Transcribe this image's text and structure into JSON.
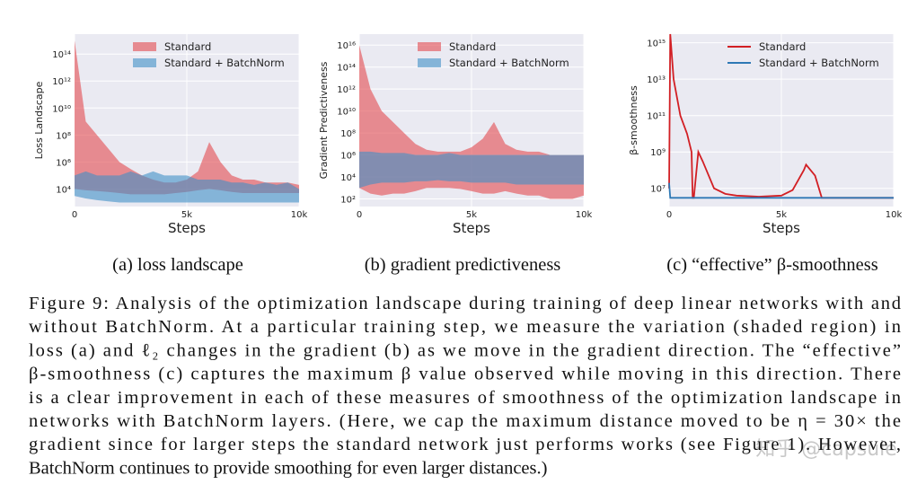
{
  "chart_data": [
    {
      "type": "band",
      "caption": "(a) loss landscape",
      "xlabel": "Steps",
      "ylabel": "Loss Landscape",
      "log_y": true,
      "grid": true,
      "legend": "upper right",
      "x": [
        0,
        500,
        1000,
        1500,
        2000,
        2500,
        3000,
        3500,
        4000,
        4500,
        5000,
        5500,
        6000,
        6500,
        7000,
        7500,
        8000,
        8500,
        9000,
        9500,
        10000
      ],
      "xlim": [
        0,
        10000
      ],
      "xticks": [
        0,
        {
          "value": 5000,
          "label": "5k"
        },
        {
          "value": 10000,
          "label": "10k"
        }
      ],
      "ylim": [
        500,
        3000000000000000.0
      ],
      "yticks": [
        {
          "value": 10000.0,
          "label": "10⁴"
        },
        {
          "value": 1000000.0,
          "label": "10⁶"
        },
        {
          "value": 100000000.0,
          "label": "10⁸"
        },
        {
          "value": 10000000000.0,
          "label": "10¹⁰"
        },
        {
          "value": 1000000000000.0,
          "label": "10¹²"
        },
        {
          "value": 100000000000000.0,
          "label": "10¹⁴"
        }
      ],
      "series": [
        {
          "name": "Standard",
          "color": "#e24a4f",
          "values": [
            1000000000000000.0,
            1000000000.0,
            100000000.0,
            10000000.0,
            1000000.0,
            300000.0,
            100000.0,
            50000.0,
            30000.0,
            30000.0,
            50000.0,
            200000.0,
            30000000.0,
            1000000.0,
            100000.0,
            50000.0,
            50000.0,
            30000.0,
            30000.0,
            30000.0,
            20000.0
          ],
          "lower": [
            10000.0,
            8000.0,
            7000.0,
            6000.0,
            5000.0,
            4000.0,
            4000.0,
            4000.0,
            4000.0,
            5000.0,
            6000.0,
            8000.0,
            10000.0,
            8000.0,
            6000.0,
            5000.0,
            5000.0,
            5000.0,
            5000.0,
            5000.0,
            5000.0
          ]
        },
        {
          "name": "Standard + BatchNorm",
          "color": "#3f8fc7",
          "values": [
            100000.0,
            200000.0,
            100000.0,
            100000.0,
            100000.0,
            200000.0,
            100000.0,
            200000.0,
            100000.0,
            100000.0,
            100000.0,
            50000.0,
            50000.0,
            50000.0,
            30000.0,
            30000.0,
            20000.0,
            30000.0,
            20000.0,
            30000.0,
            10000.0
          ],
          "lower": [
            3000.0,
            2000.0,
            1500.0,
            1200.0,
            1000.0,
            1000.0,
            1000.0,
            1000.0,
            1000.0,
            1000.0,
            1000.0,
            1000.0,
            1000.0,
            1000.0,
            1000.0,
            1000.0,
            1000.0,
            1000.0,
            1000.0,
            1000.0,
            1000.0
          ]
        }
      ]
    },
    {
      "type": "band",
      "caption": "(b) gradient predictiveness",
      "xlabel": "Steps",
      "ylabel": "Gradient Predictiveness",
      "log_y": true,
      "grid": true,
      "legend": "upper right",
      "x": [
        0,
        500,
        1000,
        1500,
        2000,
        2500,
        3000,
        3500,
        4000,
        4500,
        5000,
        5500,
        6000,
        6500,
        7000,
        7500,
        8000,
        8500,
        9000,
        9500,
        10000
      ],
      "xlim": [
        0,
        10000
      ],
      "xticks": [
        0,
        {
          "value": 5000,
          "label": "5k"
        },
        {
          "value": 10000,
          "label": "10k"
        }
      ],
      "ylim": [
        20,
        1e+17
      ],
      "yticks": [
        {
          "value": 100,
          "label": "10²"
        },
        {
          "value": 10000.0,
          "label": "10⁴"
        },
        {
          "value": 1000000.0,
          "label": "10⁶"
        },
        {
          "value": 100000000.0,
          "label": "10⁸"
        },
        {
          "value": 10000000000.0,
          "label": "10¹⁰"
        },
        {
          "value": 1000000000000.0,
          "label": "10¹²"
        },
        {
          "value": 100000000000000.0,
          "label": "10¹⁴"
        },
        {
          "value": 1e+16,
          "label": "10¹⁶"
        }
      ],
      "series": [
        {
          "name": "Standard",
          "color": "#e24a4f",
          "values": [
            1e+16,
            1000000000000.0,
            10000000000.0,
            1000000000.0,
            100000000.0,
            10000000.0,
            3000000.0,
            2000000.0,
            2000000.0,
            2000000.0,
            5000000.0,
            30000000.0,
            1000000000.0,
            10000000.0,
            3000000.0,
            2000000.0,
            2000000.0,
            1000000.0,
            1000000.0,
            1000000.0,
            1000000.0
          ],
          "lower": [
            1000.0,
            300,
            200,
            300,
            300,
            500,
            1000.0,
            1000.0,
            1000.0,
            800,
            500,
            300,
            300,
            500,
            300,
            200,
            200,
            100,
            100,
            100,
            200
          ]
        },
        {
          "name": "Standard + BatchNorm",
          "color": "#3f8fc7",
          "values": [
            2000000.0,
            2000000.0,
            1500000.0,
            1500000.0,
            1500000.0,
            1000000.0,
            1000000.0,
            1000000.0,
            1500000.0,
            1000000.0,
            1000000.0,
            1000000.0,
            1000000.0,
            1000000.0,
            1000000.0,
            1000000.0,
            1000000.0,
            1000000.0,
            1000000.0,
            1000000.0,
            1000000.0
          ],
          "lower": [
            1000.0,
            2000.0,
            3000.0,
            3000.0,
            3000.0,
            4000.0,
            4000.0,
            5000.0,
            4000.0,
            4000.0,
            3000.0,
            3000.0,
            3000.0,
            3000.0,
            2000.0,
            2000.0,
            2000.0,
            2000.0,
            2000.0,
            2000.0,
            2000.0
          ]
        }
      ]
    },
    {
      "type": "line",
      "caption": "(c) “effective” β-smoothness",
      "xlabel": "Steps",
      "ylabel": "β-smoothness",
      "log_y": true,
      "grid": true,
      "legend": "upper right",
      "x": [
        0,
        50,
        200,
        500,
        800,
        1000,
        1050,
        1100,
        1300,
        1500,
        2000,
        2500,
        3000,
        4000,
        5000,
        5500,
        6000,
        6100,
        6500,
        6800,
        7000,
        8000,
        10000
      ],
      "xlim": [
        0,
        10000
      ],
      "xticks": [
        0,
        {
          "value": 5000,
          "label": "5k"
        },
        {
          "value": 10000,
          "label": "10k"
        }
      ],
      "ylim": [
        1000000.0,
        3000000000000000.0
      ],
      "yticks": [
        {
          "value": 10000000.0,
          "label": "10⁷"
        },
        {
          "value": 1000000000.0,
          "label": "10⁹"
        },
        {
          "value": 100000000000.0,
          "label": "10¹¹"
        },
        {
          "value": 10000000000000.0,
          "label": "10¹³"
        },
        {
          "value": 1000000000000000.0,
          "label": "10¹⁵"
        }
      ],
      "series": [
        {
          "name": "Standard",
          "color": "#d21f24",
          "values": [
            10000000.0,
            3000000000000000.0,
            10000000000000.0,
            100000000000.0,
            10000000000.0,
            1000000000.0,
            3000000.0,
            3000000.0,
            1000000000.0,
            300000000.0,
            10000000.0,
            5000000.0,
            4000000.0,
            3500000.0,
            4000000.0,
            8000000.0,
            100000000.0,
            200000000.0,
            50000000.0,
            3000000.0,
            3000000.0,
            3000000.0,
            3000000.0
          ]
        },
        {
          "name": "Standard + BatchNorm",
          "color": "#2e78b5",
          "values": [
            20000000.0,
            3000000.0,
            3000000.0,
            3000000.0,
            3000000.0,
            3000000.0,
            3000000.0,
            3000000.0,
            3000000.0,
            3000000.0,
            3000000.0,
            3000000.0,
            3000000.0,
            3000000.0,
            3000000.0,
            3000000.0,
            3000000.0,
            3000000.0,
            3000000.0,
            3000000.0,
            3000000.0,
            3000000.0,
            3000000.0
          ]
        }
      ]
    }
  ],
  "figure": {
    "caption_lines": [
      "Figure 9: Analysis of the optimization landscape during training of deep linear networks with and",
      "without BatchNorm.  At a particular training step, we measure the variation (shaded region) in",
      "loss (a) and ℓ₂ changes in the gradient (b) as we move in the gradient direction. The “effective”",
      "β-smoothness (c) captures the maximum β value observed while moving in this direction. There",
      "is a clear improvement in each of these measures of smoothness of the optimization landscape in",
      "networks with BatchNorm layers. (Here, we cap the maximum distance moved to be η = 30× the",
      "gradient since for larger steps the standard network just performs works (see Figure 1). However,",
      "BatchNorm continues to provide smoothing for even larger distances.)"
    ],
    "watermark": "知乎 @capsule"
  }
}
